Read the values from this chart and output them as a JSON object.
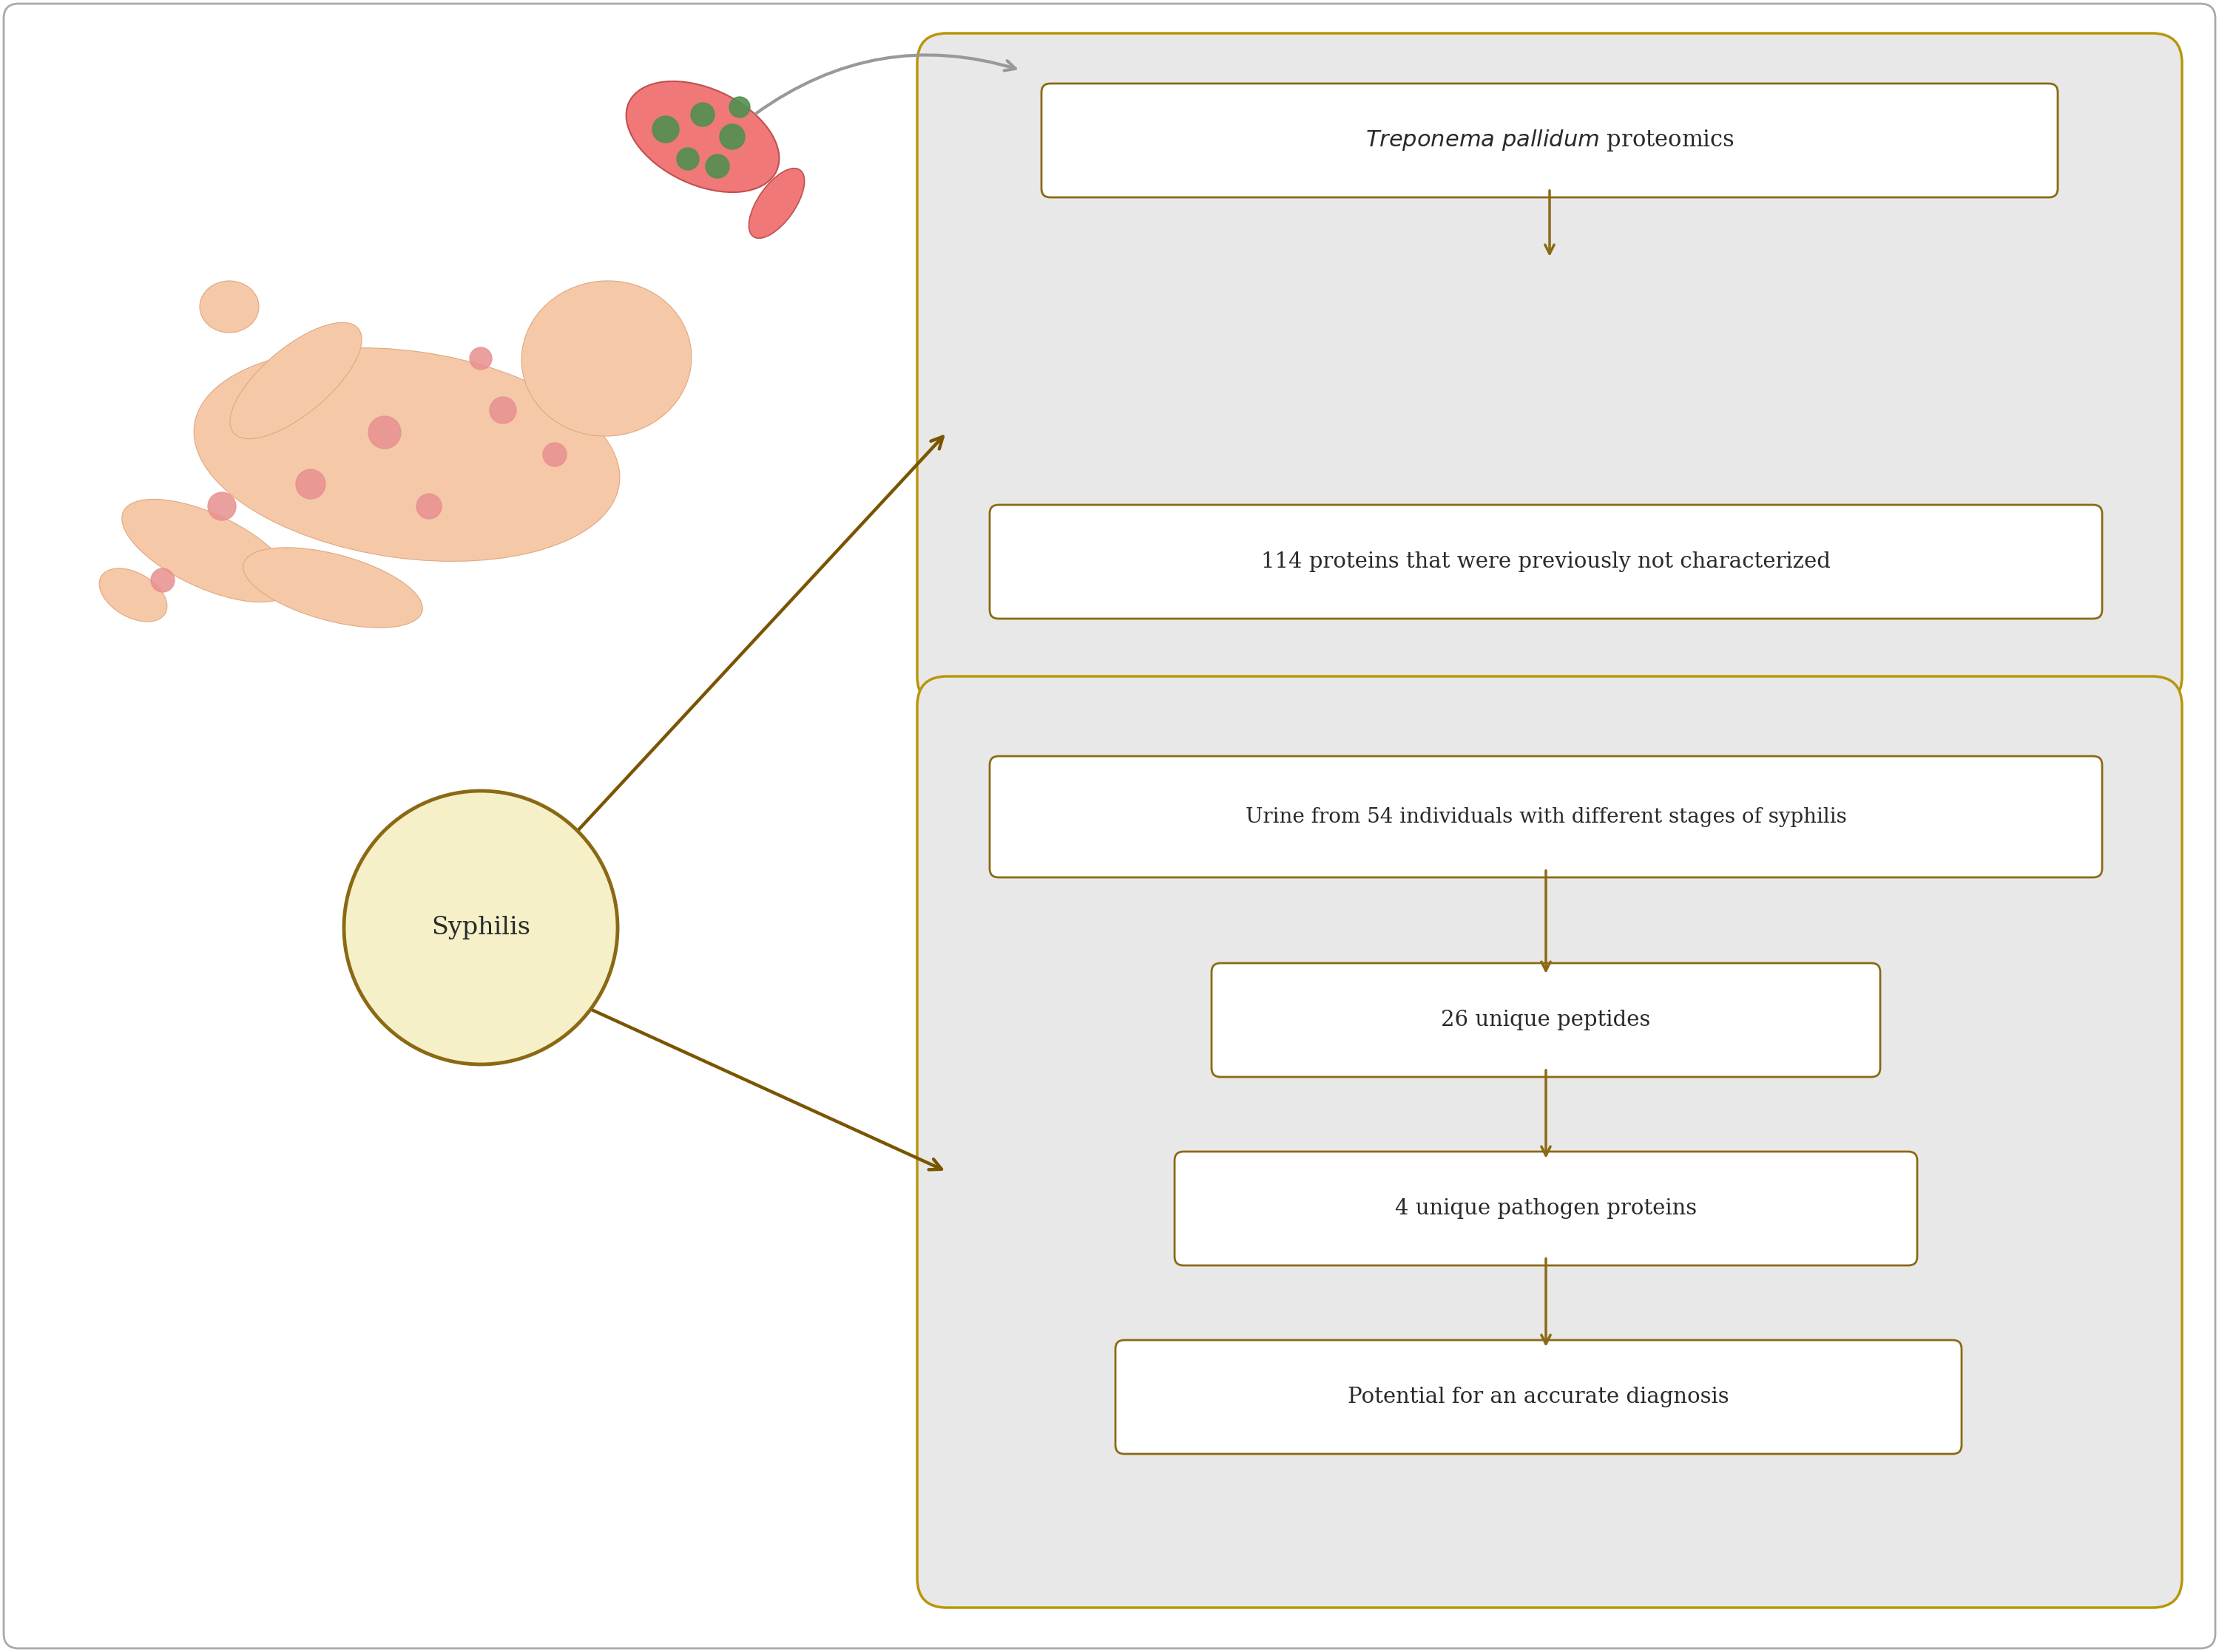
{
  "bg_color": "#ffffff",
  "outer_border_color": "#aaaaaa",
  "gold_color": "#8B6914",
  "gold_light": "#b8960a",
  "arrow_gold": "#7a5500",
  "arrow_gray": "#999999",
  "text_color": "#2a2a2a",
  "large_box_bg": "#e8e8e8",
  "inner_box_bg": "#ffffff",
  "circle_fill": "#f5f0c8",
  "circle_edge": "#8B6914",
  "top_box1_label_italic": "Treponema pallidum",
  "top_box1_label_normal": " proteomics",
  "top_box2_label": "114 proteins that were previously not characterized",
  "bottom_box1_label": "Urine from 54 individuals with different stages of syphilis",
  "bottom_box2_label": "26 unique peptides",
  "bottom_box3_label": "4 unique pathogen proteins",
  "bottom_box4_label": "Potential for an accurate diagnosis",
  "circle_label": "Syphilis",
  "skin_color": "#f5c8a8",
  "skin_edge": "#e0a880",
  "spot_color": "#e89090",
  "flask_color": "#f07878",
  "flask_edge": "#c05050",
  "green_color": "#509050"
}
